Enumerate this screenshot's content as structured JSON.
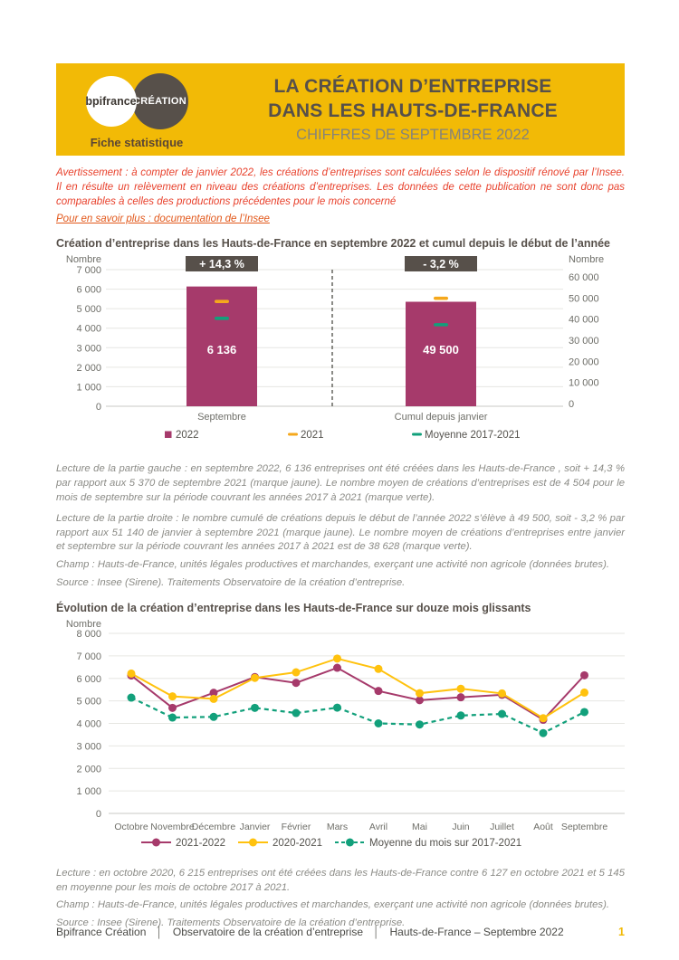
{
  "header": {
    "logo_primary": "bpifrance",
    "logo_secondary": "CRÉATION",
    "tagline": "Fiche statistique",
    "title_line1": "LA CRÉATION D’ENTREPRISE",
    "title_line2": "DANS LES HAUTS-DE-FRANCE",
    "subtitle": "CHIFFRES DE SEPTEMBRE 2022"
  },
  "notice": {
    "warning": "Avertissement : à compter de janvier 2022, les créations d’entreprises sont calculées selon le dispositif rénové par l’Insee. Il en résulte un relèvement en niveau des créations d’entreprises. Les données de cette publication ne sont donc pas comparables à celles des productions précédentes pour le mois concerné",
    "link": "Pour en savoir plus : documentation de l’Insee"
  },
  "bar_section": {
    "title": "Création d’entreprise dans les Hauts-de-France  en septembre 2022 et cumul depuis le début de l’année",
    "lecture": [
      "Lecture de la partie gauche : en septembre 2022, 6 136 entreprises ont été créées dans les Hauts-de-France , soit + 14,3 % par rapport aux 5 370 de septembre 2021 (marque jaune). Le nombre moyen de créations d’entreprises est de 4 504 pour le mois de septembre sur la période couvrant les années 2017 à 2021 (marque verte).",
      "Lecture de la partie droite : le nombre cumulé de créations depuis le début de l’année 2022 s’élève à 49 500, soit - 3,2 % par rapport aux 51 140 de janvier à septembre 2021 (marque jaune). Le nombre moyen de créations d’entreprises entre janvier et septembre sur la période couvrant les années 2017 à 2021 est de 38 628 (marque verte).",
      "Champ : Hauts-de-France, unités légales productives et marchandes, exerçant une activité non agricole (données brutes).",
      "Source : Insee (Sirene). Traitements Observatoire de la création d’entreprise."
    ]
  },
  "line_section": {
    "title": "Évolution de la création d’entreprise dans les Hauts-de-France  sur douze mois glissants",
    "lecture": [
      "Lecture : en octobre 2020, 6 215 entreprises ont été créées dans les Hauts-de-France  contre 6 127 en octobre 2021 et 5 145 en moyenne pour les mois de octobre 2017 à 2021.",
      "Champ : Hauts-de-France, unités légales productives et marchandes, exerçant une activité non agricole (données brutes).",
      "Source : Insee (Sirene). Traitements Observatoire de la création d’entreprise."
    ]
  },
  "footer": {
    "left": "Bpifrance Création",
    "middle": "Observatoire de la création d’entreprise",
    "right": "Hauts-de-France – Septembre 2022",
    "separator": "│",
    "page": "1"
  },
  "colors": {
    "brand_yellow": "#F2BA06",
    "dark_brown": "#57504A",
    "magenta": "#A63A6B",
    "marker_yellow": "#F5A81C",
    "line_yellow": "#FFC20E",
    "green": "#12A07B",
    "axis_text": "#6E6E68",
    "grid": "#E6E6E2",
    "warning_red": "#E8412C"
  },
  "chart_data": [
    {
      "type": "bar",
      "title": "Création d’entreprise dans les Hauts-de-France en septembre 2022 et cumul depuis le début de l’année",
      "ylabel_left": "Nombre",
      "ylabel_right": "Nombre",
      "bar_color": "#A63A6B",
      "panels": [
        {
          "category": "Septembre",
          "badge": "+ 14,3 %",
          "bar_value": 6136,
          "marker_2021": 5370,
          "marker_mean_2017_2021": 4504,
          "ylim": [
            0,
            7000
          ],
          "ytick_step": 1000
        },
        {
          "category": "Cumul depuis janvier",
          "badge": "- 3,2 %",
          "bar_value": 49500,
          "marker_2021": 51140,
          "marker_mean_2017_2021": 38628,
          "ylim": [
            0,
            60000
          ],
          "ytick_step": 10000
        }
      ],
      "legend": [
        {
          "label": "2022",
          "marker": "square",
          "color": "#A63A6B"
        },
        {
          "label": "2021",
          "marker": "dash",
          "color": "#F5A81C"
        },
        {
          "label": "Moyenne 2017-2021",
          "marker": "dash",
          "color": "#12A07B"
        }
      ]
    },
    {
      "type": "line",
      "title": "Évolution de la création d’entreprise dans les Hauts-de-France sur douze mois glissants",
      "ylabel": "Nombre",
      "ylim": [
        0,
        8000
      ],
      "ytick_step": 1000,
      "grid": true,
      "legend_position": "bottom",
      "categories": [
        "Octobre",
        "Novembre",
        "Décembre",
        "Janvier",
        "Février",
        "Mars",
        "Avril",
        "Mai",
        "Juin",
        "Juillet",
        "Août",
        "Septembre"
      ],
      "series": [
        {
          "name": "2021-2022",
          "color": "#A63A6B",
          "style": "solid",
          "values": [
            6127,
            4690,
            5360,
            6060,
            5800,
            6470,
            5440,
            5030,
            5160,
            5270,
            4160,
            6136
          ]
        },
        {
          "name": "2020-2021",
          "color": "#FFC20E",
          "style": "solid",
          "values": [
            6215,
            5200,
            5090,
            6020,
            6270,
            6880,
            6420,
            5340,
            5540,
            5330,
            4230,
            5370
          ]
        },
        {
          "name": "Moyenne du mois sur 2017-2021",
          "color": "#12A07B",
          "style": "dashed",
          "values": [
            5145,
            4260,
            4290,
            4690,
            4460,
            4700,
            4000,
            3950,
            4350,
            4420,
            3570,
            4504
          ]
        }
      ]
    }
  ]
}
